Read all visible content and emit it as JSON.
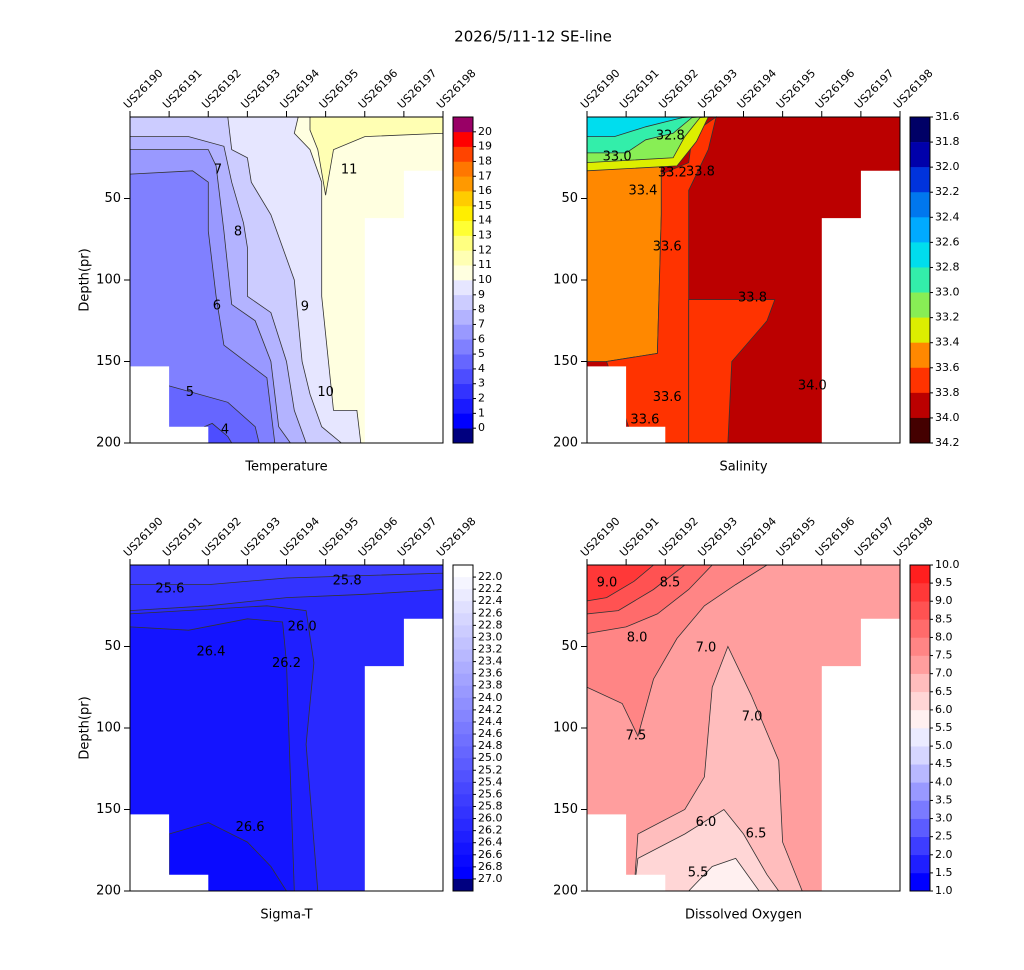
{
  "title": "2026/5/11-12  SE-line",
  "chart_data": [
    {
      "type": "contour",
      "xlabel": "Temperature",
      "ylabel": "Depth(pr)",
      "categories": [
        "US26190",
        "US26191",
        "US26192",
        "US26193",
        "US26194",
        "US26195",
        "US26196",
        "US26197",
        "US26198"
      ],
      "ylim": [
        0,
        200
      ],
      "y_inverted": true,
      "yticks": [
        50,
        100,
        150,
        200
      ],
      "clim": [
        -1,
        21
      ],
      "colorbar_reversed": false,
      "cticks": [
        0,
        1,
        2,
        3,
        4,
        5,
        6,
        7,
        8,
        9,
        10,
        11,
        12,
        13,
        14,
        15,
        16,
        17,
        18,
        19,
        20
      ],
      "colors": [
        "#00007f",
        "#0000ff",
        "#1a1aff",
        "#3333ff",
        "#4d4dff",
        "#6666ff",
        "#8080ff",
        "#9999ff",
        "#b3b3ff",
        "#ccccff",
        "#e6e6ff",
        "#ffffe0",
        "#ffffb3",
        "#ffff80",
        "#ffff33",
        "#ffee00",
        "#ffcc00",
        "#ff9900",
        "#ff7700",
        "#ff4400",
        "#ff0000",
        "#990066"
      ],
      "contour_labels": [
        7,
        8,
        6,
        5,
        4,
        9,
        10,
        11
      ]
    },
    {
      "type": "contour",
      "xlabel": "Salinity",
      "categories": [
        "US26190",
        "US26191",
        "US26192",
        "US26193",
        "US26194",
        "US26195",
        "US26196",
        "US26197",
        "US26198"
      ],
      "ylim": [
        0,
        200
      ],
      "y_inverted": true,
      "yticks": [
        50,
        100,
        150,
        200
      ],
      "clim": [
        31.6,
        34.2
      ],
      "colorbar_reversed": true,
      "cticks": [
        31.6,
        31.8,
        {
          "value": 32,
          "label": "32.0"
        },
        32.2,
        32.4,
        32.6,
        32.8,
        {
          "value": 33,
          "label": "33.0"
        },
        33.2,
        33.4,
        33.6,
        33.8,
        {
          "value": 34,
          "label": "34.0"
        },
        34.2
      ],
      "colors": [
        "#000066",
        "#0000aa",
        "#0033dd",
        "#0077ee",
        "#00aaff",
        "#00ddee",
        "#33eeaa",
        "#88ee55",
        "#ddee00",
        "#ff8800",
        "#ff3300",
        "#bb0000",
        "#440000"
      ],
      "contour_labels": [
        32.8,
        {
          "value": 33,
          "label": "33.0"
        },
        33.2,
        33.8,
        33.4,
        33.6,
        33.8,
        {
          "value": 34,
          "label": "34.0"
        },
        33.6,
        33.6
      ]
    },
    {
      "type": "contour",
      "xlabel": "Sigma-T",
      "ylabel": "Depth(pr)",
      "categories": [
        "US26190",
        "US26191",
        "US26192",
        "US26193",
        "US26194",
        "US26195",
        "US26196",
        "US26197",
        "US26198"
      ],
      "ylim": [
        0,
        200
      ],
      "y_inverted": true,
      "yticks": [
        50,
        100,
        150,
        200
      ],
      "clim": [
        21.8,
        27.2
      ],
      "colorbar_reversed": true,
      "cticks": [
        {
          "value": 22,
          "label": "22.0"
        },
        22.2,
        22.4,
        22.6,
        22.8,
        {
          "value": 23,
          "label": "23.0"
        },
        23.2,
        23.4,
        23.6,
        23.8,
        {
          "value": 24,
          "label": "24.0"
        },
        24.2,
        24.4,
        24.6,
        24.8,
        {
          "value": 25,
          "label": "25.0"
        },
        25.2,
        25.4,
        25.6,
        25.8,
        {
          "value": 26,
          "label": "26.0"
        },
        26.2,
        26.4,
        26.6,
        26.8,
        {
          "value": 27,
          "label": "27.0"
        }
      ],
      "colors": [
        "#ffffff",
        "#f5f5ff",
        "#ebebff",
        "#e0e0ff",
        "#d6d6ff",
        "#ccccff",
        "#c2c2ff",
        "#b8b8ff",
        "#adadff",
        "#a3a3ff",
        "#9999ff",
        "#8f8fff",
        "#8585ff",
        "#7a7aff",
        "#7070ff",
        "#6666ff",
        "#5c5cff",
        "#5252ff",
        "#4747ff",
        "#3d3dff",
        "#3333ff",
        "#2929ff",
        "#1f1fff",
        "#1414ff",
        "#0a0aff",
        "#0000ff",
        "#000080"
      ],
      "contour_labels": [
        25.6,
        25.8,
        {
          "value": 26,
          "label": "26.0"
        },
        26.4,
        26.2,
        26.6
      ]
    },
    {
      "type": "contour",
      "xlabel": "Dissolved Oxygen",
      "categories": [
        "US26190",
        "US26191",
        "US26192",
        "US26193",
        "US26194",
        "US26195",
        "US26196",
        "US26197",
        "US26198"
      ],
      "ylim": [
        0,
        200
      ],
      "y_inverted": true,
      "yticks": [
        50,
        100,
        150,
        200
      ],
      "clim": [
        1,
        10
      ],
      "colorbar_reversed": false,
      "cticks": [
        {
          "value": 1,
          "label": "1.0"
        },
        1.5,
        {
          "value": 2,
          "label": "2.0"
        },
        2.5,
        {
          "value": 3,
          "label": "3.0"
        },
        3.5,
        {
          "value": 4,
          "label": "4.0"
        },
        4.5,
        {
          "value": 5,
          "label": "5.0"
        },
        5.5,
        {
          "value": 6,
          "label": "6.0"
        },
        6.5,
        {
          "value": 7,
          "label": "7.0"
        },
        7.5,
        {
          "value": 8,
          "label": "8.0"
        },
        8.5,
        {
          "value": 9,
          "label": "9.0"
        },
        9.5,
        {
          "value": 10,
          "label": "10.0"
        }
      ],
      "colors": [
        "#0000ff",
        "#1f1fff",
        "#3d3dff",
        "#5c5cff",
        "#7a7aff",
        "#9999ff",
        "#b8b8ff",
        "#d6d6ff",
        "#ebebff",
        "#fff0f0",
        "#ffd6d6",
        "#ffbdbd",
        "#ff9e9e",
        "#ff8585",
        "#ff6b6b",
        "#ff5252",
        "#ff3838",
        "#ff1f1f"
      ],
      "contour_labels": [
        {
          "value": 9,
          "label": "9.0"
        },
        8.5,
        {
          "value": 8,
          "label": "8.0"
        },
        {
          "value": 7,
          "label": "7.0"
        },
        {
          "value": 7,
          "label": "7.0"
        },
        7.5,
        {
          "value": 6,
          "label": "6.0"
        },
        6.5,
        5.5
      ]
    }
  ]
}
